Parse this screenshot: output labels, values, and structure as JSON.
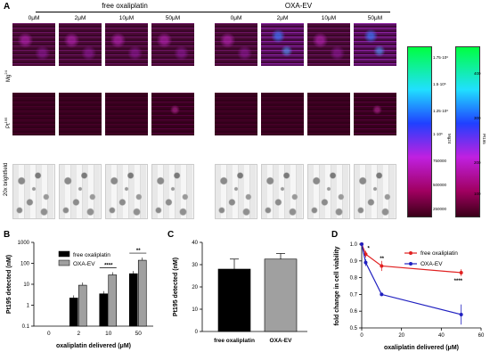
{
  "panel_A": {
    "letter": "A",
    "group_left": "free oxaliplatin",
    "group_right": "OXA-EV",
    "concentrations": [
      "0μM",
      "2μM",
      "10μM",
      "50μM"
    ],
    "rows": [
      "Mg24",
      "Pt195",
      "20x brightfield"
    ],
    "colorbar1_ticks": [
      "1.75·10⁶",
      "1.5·10⁶",
      "1.25·10⁶",
      "1·10⁶",
      "750000",
      "500000",
      "250000"
    ],
    "colorbar1_unit": "Mg24",
    "colorbar2_ticks": [
      "400",
      "300",
      "200",
      "100"
    ],
    "colorbar2_unit": "Pt195"
  },
  "panel_B": {
    "letter": "B",
    "ylabel": "Pt195 detected (nM)",
    "xlabel": "oxaliplatin delivered (μM)",
    "legend": [
      "free oxaliplatin",
      "OXA-EV"
    ],
    "sig": [
      "****",
      "**"
    ]
  },
  "panel_C": {
    "letter": "C",
    "ylabel": "Pt195 detected (nM)",
    "categories": [
      "free oxaliplatin",
      "OXA-EV"
    ]
  },
  "panel_D": {
    "letter": "D",
    "ylabel": "fold change in cell viability",
    "xlabel": "oxaliplatin delivered (μM)",
    "legend": [
      "free oxaliplatin",
      "OXA-EV"
    ],
    "sig": [
      "*",
      "**",
      "****"
    ]
  },
  "chart_data": [
    {
      "type": "bar",
      "title": "B",
      "categories": [
        "0",
        "2",
        "10",
        "50"
      ],
      "series": [
        {
          "name": "free oxaliplatin",
          "values": [
            0,
            2.2,
            3.5,
            32
          ],
          "color": "#000000"
        },
        {
          "name": "OXA-EV",
          "values": [
            0,
            9,
            28,
            140
          ],
          "color": "#a0a0a0"
        }
      ],
      "yscale": "log",
      "yticks": [
        "0.1",
        "1",
        "10",
        "100",
        "1000"
      ],
      "ylim": [
        0.1,
        1000
      ],
      "xlabel": "oxaliplatin delivered (μM)",
      "ylabel": "Pt195 detected (nM)"
    },
    {
      "type": "bar",
      "title": "C",
      "categories": [
        "free oxaliplatin",
        "OXA-EV"
      ],
      "values": [
        28,
        32.5
      ],
      "errors": [
        4.5,
        2.5
      ],
      "colors": [
        "#000000",
        "#a0a0a0"
      ],
      "yticks": [
        "0",
        "10",
        "20",
        "30",
        "40"
      ],
      "ylim": [
        0,
        40
      ],
      "ylabel": "Pt195 detected (nM)"
    },
    {
      "type": "line",
      "title": "D",
      "x": [
        0,
        2,
        10,
        50
      ],
      "series": [
        {
          "name": "free oxaliplatin",
          "values": [
            1.0,
            0.94,
            0.87,
            0.83
          ],
          "errors": [
            0.01,
            0.02,
            0.03,
            0.02
          ],
          "color": "#e02020"
        },
        {
          "name": "OXA-EV",
          "values": [
            1.0,
            0.89,
            0.7,
            0.58
          ],
          "errors": [
            0.01,
            0.02,
            0.01,
            0.06
          ],
          "color": "#2020c0"
        }
      ],
      "xticks": [
        "0",
        "20",
        "40",
        "60"
      ],
      "yticks": [
        "0.5",
        "0.6",
        "0.7",
        "0.8",
        "0.9",
        "1.0"
      ],
      "xlim": [
        0,
        60
      ],
      "ylim": [
        0.5,
        1.0
      ],
      "xlabel": "oxaliplatin delivered (μM)",
      "ylabel": "fold change in cell viability"
    }
  ]
}
